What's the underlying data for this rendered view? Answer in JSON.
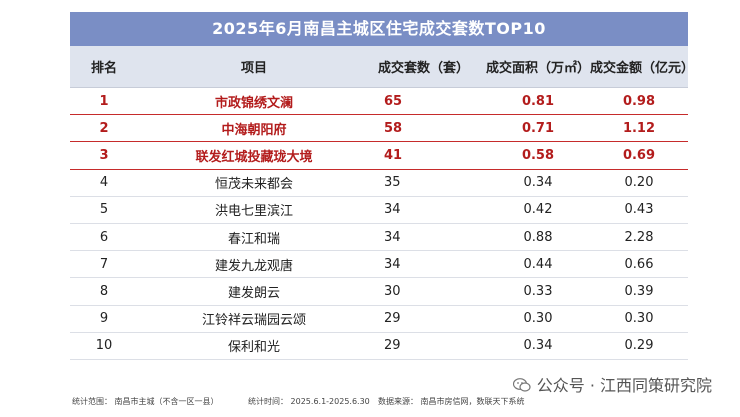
{
  "title": "2025年6月南昌主城区住宅成交套数TOP10",
  "columns": [
    "排名",
    "项目",
    "成交套数（套）",
    "成交面积（万㎡）",
    "成交金额（亿元）"
  ],
  "rows": [
    {
      "rank": "1",
      "name": "市政锦绣文澜",
      "units": "65",
      "area": "0.81",
      "amount": "0.98",
      "highlight": true
    },
    {
      "rank": "2",
      "name": "中海朝阳府",
      "units": "58",
      "area": "0.71",
      "amount": "1.12",
      "highlight": true
    },
    {
      "rank": "3",
      "name": "联发红城投藏珑大境",
      "units": "41",
      "area": "0.58",
      "amount": "0.69",
      "highlight": true
    },
    {
      "rank": "4",
      "name": "恒茂未来都会",
      "units": "35",
      "area": "0.34",
      "amount": "0.20",
      "highlight": false
    },
    {
      "rank": "5",
      "name": "洪电七里滨江",
      "units": "34",
      "area": "0.42",
      "amount": "0.43",
      "highlight": false
    },
    {
      "rank": "6",
      "name": "春江和瑞",
      "units": "34",
      "area": "0.88",
      "amount": "2.28",
      "highlight": false
    },
    {
      "rank": "7",
      "name": "建发九龙观唐",
      "units": "34",
      "area": "0.44",
      "amount": "0.66",
      "highlight": false
    },
    {
      "rank": "8",
      "name": "建发朗云",
      "units": "30",
      "area": "0.33",
      "amount": "0.39",
      "highlight": false
    },
    {
      "rank": "9",
      "name": "江铃祥云瑞园云颂",
      "units": "29",
      "area": "0.30",
      "amount": "0.30",
      "highlight": false
    },
    {
      "rank": "10",
      "name": "保利和光",
      "units": "29",
      "area": "0.34",
      "amount": "0.29",
      "highlight": false
    }
  ],
  "footer": {
    "scope": "统计范围：  南昌市主城（不含一区一县）",
    "period": "统计时间：  2025.6.1-2025.6.30",
    "source": "数据来源：  南昌市房信网，数联天下系统"
  },
  "watermark": "公众号 · 江西同策研究院",
  "colors": {
    "title_bg": "#7a8ec5",
    "header_bg": "#dfe4ee",
    "highlight_text": "#b31c1c"
  }
}
